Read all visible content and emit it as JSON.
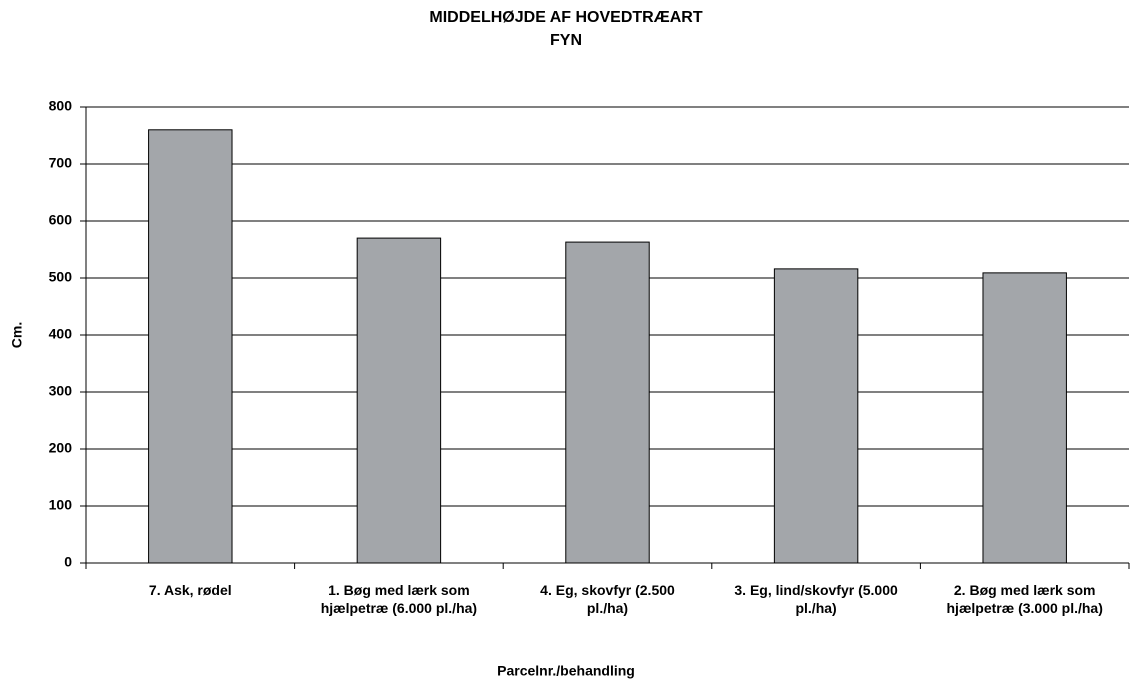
{
  "chart_data": {
    "type": "bar",
    "title": "MIDDELHØJDE AF HOVEDTRÆART",
    "subtitle": "FYN",
    "x_label": "Parcelnr./behandling",
    "y_label": "Cm.",
    "categories": [
      "7. Ask, rødel",
      "1. Bøg med lærk som hjælpetræ (6.000 pl./ha)",
      "4. Eg, skovfyr (2.500 pl./ha)",
      "3. Eg, lind/skovfyr (5.000 pl./ha)",
      "2. Bøg med lærk som hjælpetræ (3.000 pl./ha)"
    ],
    "values": [
      760,
      570,
      563,
      516,
      509
    ],
    "color": "#a3a6aa",
    "ylim": [
      0,
      800
    ],
    "yticks": [
      0,
      100,
      200,
      300,
      400,
      500,
      600,
      700,
      800
    ],
    "grid": true
  }
}
